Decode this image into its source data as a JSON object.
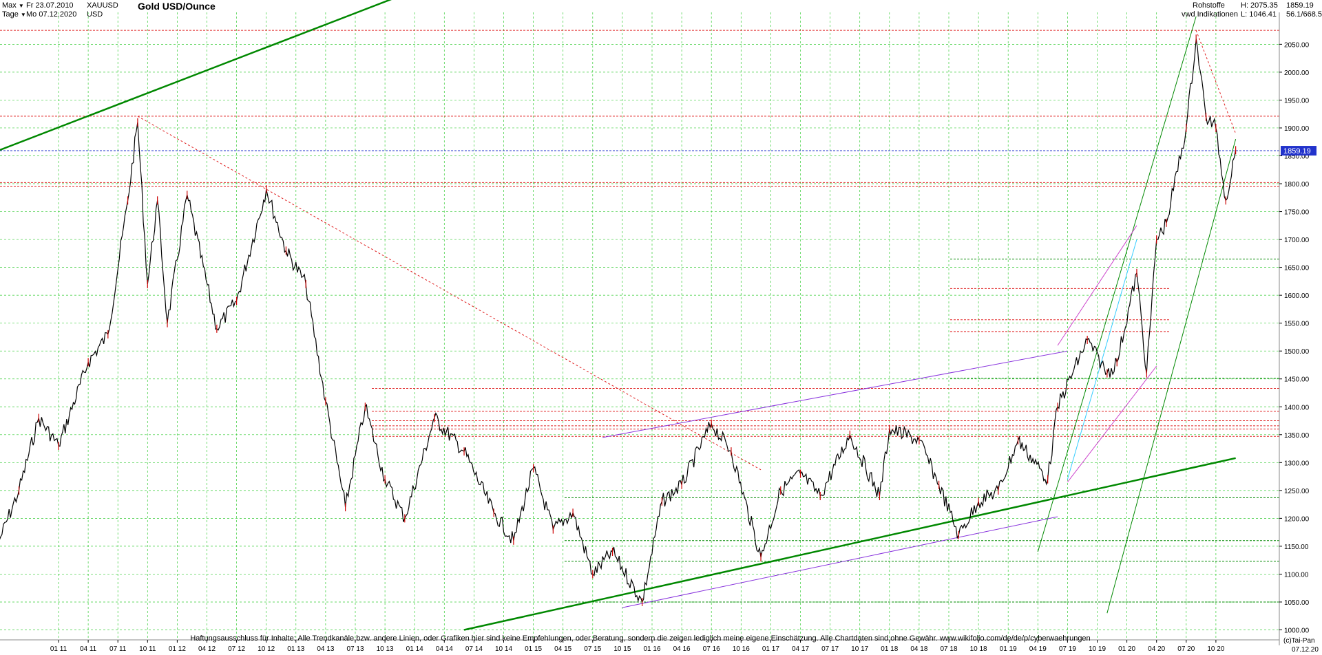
{
  "header": {
    "range_label": "Max",
    "interval_label": "Tage",
    "date_from": "Fr 23.07.2010",
    "date_to": "Mo 07.12.2020",
    "symbol": "XAUUSD",
    "currency": "USD",
    "title": "Gold USD/Ounce",
    "category": "Rohstoffe",
    "source": "vwd Indikationen",
    "high": "H: 2075.35",
    "low": "L: 1046.41",
    "last_value": "1859.19",
    "ratio": "56.1/668.5"
  },
  "current_price_label": "1859.19",
  "x_end_label": "07.12.20",
  "copyright": "(c)Tai-Pan",
  "disclaimer": "Haftungsausschluss für Inhalte: Alle Trendkanäle bzw. andere Linien, oder Grafiken hier sind keine Empfehlungen, oder Beratung, sondern die zeigen lediglich meine eigene Einschätzung. Alle Chartdaten sind ohne Gewähr.  www.wikifolio.com/de/de/p/cyberwaehrungen",
  "colors": {
    "price": "#000000",
    "down_candle": "#cc0000",
    "grid": "#33cc33",
    "trend_green": "#008800",
    "trend_purple": "#8833dd",
    "trend_magenta": "#cc44cc",
    "trend_cyan": "#33ccff",
    "support_red": "#e02020",
    "current_blue": "#2233cc"
  },
  "chart_data": {
    "type": "line",
    "title": "Gold USD/Ounce",
    "xlabel": "",
    "ylabel": "",
    "ylim": [
      1000,
      2100
    ],
    "y_ticks": [
      1000,
      1050,
      1100,
      1150,
      1200,
      1250,
      1300,
      1350,
      1400,
      1450,
      1500,
      1550,
      1600,
      1650,
      1700,
      1750,
      1800,
      1850,
      1900,
      1950,
      2000,
      2050
    ],
    "x_ticks": [
      "01 11",
      "04 11",
      "07 11",
      "10 11",
      "01 12",
      "04 12",
      "07 12",
      "10 12",
      "01 13",
      "04 13",
      "07 13",
      "10 13",
      "01 14",
      "04 14",
      "07 14",
      "10 14",
      "01 15",
      "04 15",
      "07 15",
      "10 15",
      "01 16",
      "04 16",
      "07 16",
      "10 16",
      "01 17",
      "04 17",
      "07 17",
      "10 17",
      "01 18",
      "04 18",
      "07 18",
      "10 18",
      "01 19",
      "04 19",
      "07 19",
      "10 19",
      "01 20",
      "04 20",
      "07 20",
      "10 20"
    ],
    "grid": true,
    "series": [
      {
        "x": [
          "07.2010",
          "09.2010",
          "11.2010",
          "01.2011",
          "04.2011",
          "06.2011",
          "08.2011",
          "09.2011",
          "10.2011",
          "11.2011",
          "12.2011",
          "02.2012",
          "05.2012",
          "07.2012",
          "10.2012",
          "12.2012",
          "02.2013",
          "04.2013",
          "06.2013",
          "08.2013",
          "10.2013",
          "12.2013",
          "03.2014",
          "06.2014",
          "09.2014",
          "11.2014",
          "01.2015",
          "03.2015",
          "05.2015",
          "07.2015",
          "09.2015",
          "12.2015",
          "02.2016",
          "04.2016",
          "07.2016",
          "09.2016",
          "12.2016",
          "02.2017",
          "04.2017",
          "06.2017",
          "09.2017",
          "12.2017",
          "01.2018",
          "04.2018",
          "06.2018",
          "08.2018",
          "10.2018",
          "12.2018",
          "02.2019",
          "05.2019",
          "06.2019",
          "09.2019",
          "11.2019",
          "12.2019",
          "02.2020",
          "03.2020",
          "04.2020",
          "05.2020",
          "07.2020",
          "08.2020",
          "09.2020",
          "10.2020",
          "11.2020",
          "12.2020"
        ],
        "values": [
          1160,
          1250,
          1380,
          1330,
          1480,
          1530,
          1770,
          1910,
          1620,
          1770,
          1550,
          1780,
          1540,
          1590,
          1790,
          1680,
          1620,
          1410,
          1220,
          1400,
          1270,
          1200,
          1380,
          1320,
          1210,
          1160,
          1290,
          1180,
          1210,
          1100,
          1140,
          1050,
          1230,
          1260,
          1370,
          1320,
          1130,
          1250,
          1280,
          1240,
          1350,
          1240,
          1360,
          1340,
          1260,
          1170,
          1230,
          1250,
          1340,
          1270,
          1400,
          1520,
          1460,
          1480,
          1640,
          1460,
          1700,
          1730,
          1900,
          2060,
          1920,
          1900,
          1770,
          1860
        ]
      }
    ],
    "horizontal_levels": [
      {
        "value": 2075,
        "color": "red"
      },
      {
        "value": 1921,
        "color": "red"
      },
      {
        "value": 1859.19,
        "color": "blue"
      },
      {
        "value": 1802,
        "color": "red"
      },
      {
        "value": 1795,
        "color": "red"
      },
      {
        "value": 1433,
        "color": "red"
      },
      {
        "value": 1392,
        "color": "red"
      },
      {
        "value": 1375,
        "color": "red"
      },
      {
        "value": 1366,
        "color": "red"
      },
      {
        "value": 1360,
        "color": "red"
      },
      {
        "value": 1347,
        "color": "red"
      },
      {
        "value": 1612,
        "color": "red"
      },
      {
        "value": 1556,
        "color": "red"
      },
      {
        "value": 1535,
        "color": "red"
      },
      {
        "value": 1665,
        "color": "green"
      },
      {
        "value": 1451,
        "color": "green"
      },
      {
        "value": 1237,
        "color": "green"
      },
      {
        "value": 1160,
        "color": "green"
      },
      {
        "value": 1123,
        "color": "green"
      },
      {
        "value": 1050,
        "color": "green"
      }
    ],
    "trendlines": [
      {
        "color": "green",
        "from": [
          "07.2010",
          1860
        ],
        "to": [
          "06.2014",
          2181
        ]
      },
      {
        "color": "green",
        "from": [
          "06.2014",
          1000
        ],
        "to": [
          "12.2020",
          1308
        ]
      },
      {
        "color": "green",
        "from": [
          "11.2019",
          1030
        ],
        "to": [
          "12.2020",
          1880
        ]
      },
      {
        "color": "green",
        "from": [
          "04.2019",
          1140
        ],
        "to": [
          "08.2020",
          2100
        ]
      },
      {
        "color": "purple",
        "from": [
          "10.2015",
          1040
        ],
        "to": [
          "06.2019",
          1203
        ]
      },
      {
        "color": "purple",
        "from": [
          "08.2015",
          1345
        ],
        "to": [
          "07.2019",
          1500
        ]
      },
      {
        "color": "magenta",
        "from": [
          "06.2019",
          1510
        ],
        "to": [
          "02.2020",
          1725
        ]
      },
      {
        "color": "magenta",
        "from": [
          "07.2019",
          1265
        ],
        "to": [
          "04.2020",
          1473
        ]
      },
      {
        "color": "cyan",
        "from": [
          "07.2019",
          1270
        ],
        "to": [
          "02.2020",
          1700
        ]
      },
      {
        "color": "red",
        "from": [
          "09.2011",
          1921
        ],
        "to": [
          "12.2016",
          1287
        ]
      },
      {
        "color": "red",
        "from": [
          "08.2020",
          2075
        ],
        "to": [
          "12.2020",
          1890
        ]
      }
    ]
  }
}
